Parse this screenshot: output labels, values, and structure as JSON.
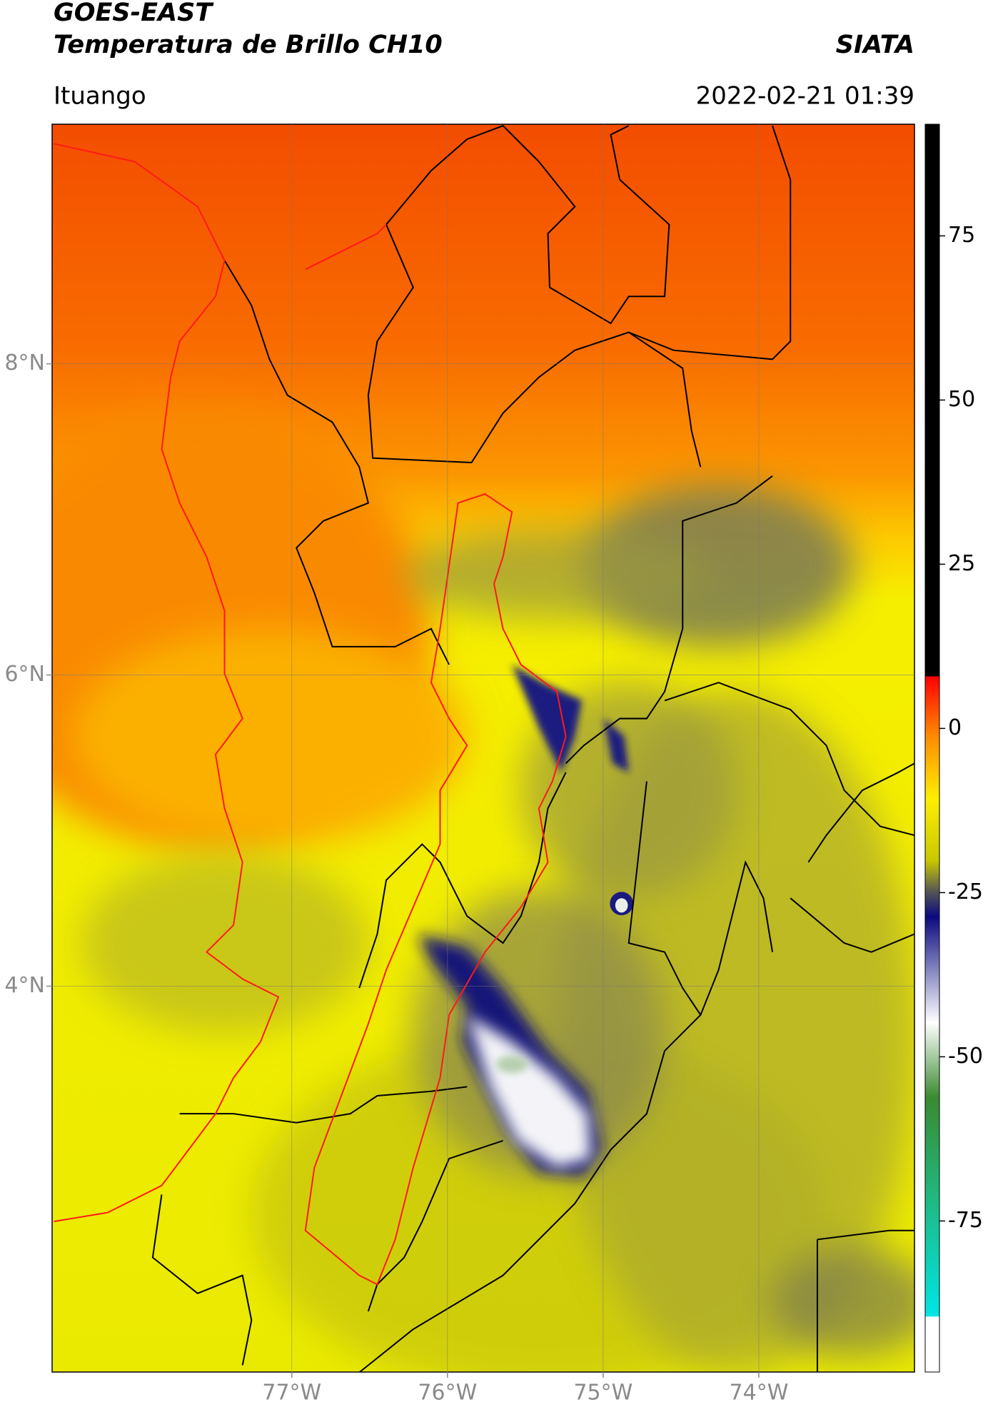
{
  "header": {
    "satellite": "GOES-EAST",
    "product": "Temperatura de Brillo CH10",
    "agency": "SIATA",
    "location": "Ituango",
    "datetime": "2022-02-21 01:39"
  },
  "map": {
    "lonlim": [
      -78.54,
      -73.0
    ],
    "latlim": [
      1.52,
      9.54
    ],
    "lon_ticks": [
      {
        "value": -77,
        "label": "77°W"
      },
      {
        "value": -76,
        "label": "76°W"
      },
      {
        "value": -75,
        "label": "75°W"
      },
      {
        "value": -74,
        "label": "74°W"
      }
    ],
    "lat_ticks": [
      {
        "value": 8,
        "label": "8°N"
      },
      {
        "value": 6,
        "label": "6°N"
      },
      {
        "value": 4,
        "label": "4°N"
      }
    ],
    "grid": true
  },
  "colorbar": {
    "lim": [
      -98,
      92
    ],
    "ticks": [
      75,
      50,
      25,
      0,
      -25,
      -50,
      -75
    ]
  }
}
